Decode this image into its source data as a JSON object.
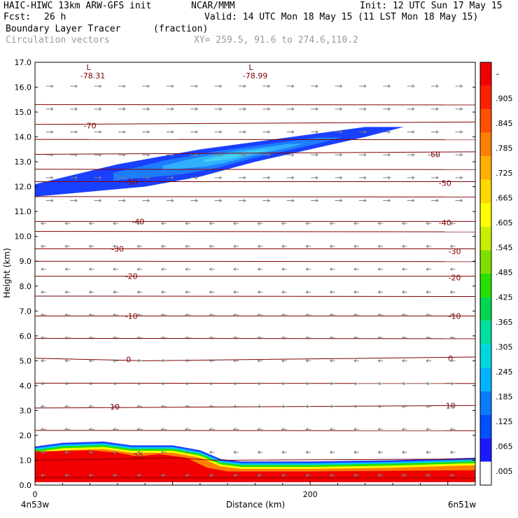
{
  "header": {
    "model": "HAIC-HIWC 13km ARW-GFS init",
    "org": "NCAR/MMM",
    "init": "Init: 12 UTC Sun 17 May 15",
    "fcst_label": "Fcst:",
    "fcst_value": "26 h",
    "valid": "Valid: 14 UTC Mon 18 May 15 (11 LST Mon 18 May 15)",
    "field_name": "Boundary Layer Tracer",
    "field_units": "(fraction)",
    "vectors_label": "Circulation vectors",
    "xy_label": "XY= 259.5, 91.6 to 274.6,110.2"
  },
  "colors": {
    "contour_line": "#800000",
    "vector": "#808080",
    "frame": "#000000"
  },
  "chart_data": {
    "type": "cross-section",
    "title": "Boundary Layer Tracer",
    "units": "(fraction)",
    "xlabel": "Distance (km)",
    "ylabel": "Height (km)",
    "xlim": [
      0,
      320
    ],
    "ylim": [
      0,
      17
    ],
    "x_ticks": [
      0,
      200
    ],
    "x_tick_labels": [
      "0",
      "200"
    ],
    "x_end_labels": [
      "4n53w",
      "6n51w"
    ],
    "y_ticks": [
      0,
      1,
      2,
      3,
      4,
      5,
      6,
      7,
      8,
      9,
      10,
      11,
      12,
      13,
      14,
      15,
      16,
      17
    ],
    "y_tick_labels": [
      "0.0",
      "1.0",
      "2.0",
      "3.0",
      "4.0",
      "5.0",
      "6.0",
      "7.0",
      "8.0",
      "9.0",
      "10.0",
      "11.0",
      "12.0",
      "13.0",
      "14.0",
      "15.0",
      "16.0",
      "17.0"
    ],
    "colorbar": {
      "labels": [
        ".005",
        ".065",
        ".125",
        ".185",
        ".245",
        ".305",
        ".365",
        ".425",
        ".485",
        ".545",
        ".605",
        ".665",
        ".725",
        ".785",
        ".845",
        ".905",
        "–"
      ],
      "colors": [
        "#ffffff",
        "#1a1aff",
        "#0050ff",
        "#0a7cff",
        "#00b4ff",
        "#00d8e0",
        "#00e0a0",
        "#00d650",
        "#28e000",
        "#7fe000",
        "#c8f000",
        "#ffff00",
        "#ffd800",
        "#ffb000",
        "#ff8000",
        "#ff5000",
        "#ff2000",
        "#f00000"
      ]
    },
    "temperature_contours": [
      {
        "label": "-70",
        "points": [
          [
            0,
            14.5
          ],
          [
            320,
            14.6
          ]
        ],
        "label_at": [
          40,
          14.45
        ]
      },
      {
        "label": "-60",
        "points": [
          [
            0,
            13.3
          ],
          [
            320,
            13.4
          ]
        ],
        "label_at": [
          290,
          13.3
        ]
      },
      {
        "label": "-50",
        "points": [
          [
            0,
            12.2
          ],
          [
            320,
            12.2
          ]
        ],
        "label_at": [
          70,
          12.2
        ]
      },
      {
        "label": "-50",
        "points": [
          [
            0,
            12.2
          ],
          [
            320,
            12.2
          ]
        ],
        "label_at": [
          298,
          12.15
        ]
      },
      {
        "label": "-40",
        "points": [
          [
            0,
            10.6
          ],
          [
            320,
            10.6
          ]
        ],
        "label_at": [
          75,
          10.6
        ]
      },
      {
        "label": "-40",
        "points": [
          [
            0,
            10.6
          ],
          [
            320,
            10.6
          ]
        ],
        "label_at": [
          298,
          10.55
        ]
      },
      {
        "label": "-30",
        "points": [
          [
            0,
            9.5
          ],
          [
            320,
            9.5
          ]
        ],
        "label_at": [
          60,
          9.5
        ]
      },
      {
        "label": "-30",
        "points": [
          [
            0,
            9.5
          ],
          [
            320,
            9.5
          ]
        ],
        "label_at": [
          305,
          9.4
        ]
      },
      {
        "label": "-20",
        "points": [
          [
            0,
            8.4
          ],
          [
            320,
            8.4
          ]
        ],
        "label_at": [
          70,
          8.4
        ]
      },
      {
        "label": "-20",
        "points": [
          [
            0,
            8.4
          ],
          [
            320,
            8.4
          ]
        ],
        "label_at": [
          305,
          8.35
        ]
      },
      {
        "label": "-10",
        "points": [
          [
            0,
            6.8
          ],
          [
            320,
            6.8
          ]
        ],
        "label_at": [
          70,
          6.8
        ]
      },
      {
        "label": "-10",
        "points": [
          [
            0,
            6.8
          ],
          [
            320,
            6.8
          ]
        ],
        "label_at": [
          305,
          6.8
        ]
      },
      {
        "label": "0",
        "points": [
          [
            0,
            5.1
          ],
          [
            80,
            5.0
          ],
          [
            320,
            5.15
          ]
        ],
        "label_at": [
          68,
          5.05
        ]
      },
      {
        "label": "0",
        "points": [
          [
            0,
            5.1
          ],
          [
            80,
            5.0
          ],
          [
            320,
            5.15
          ]
        ],
        "label_at": [
          302,
          5.1
        ]
      },
      {
        "label": "10",
        "points": [
          [
            0,
            3.1
          ],
          [
            320,
            3.2
          ]
        ],
        "label_at": [
          58,
          3.15
        ]
      },
      {
        "label": "10",
        "points": [
          [
            0,
            3.1
          ],
          [
            320,
            3.2
          ]
        ],
        "label_at": [
          302,
          3.2
        ]
      },
      {
        "label": "20",
        "points": [
          [
            0,
            1.0
          ],
          [
            60,
            1.05
          ],
          [
            100,
            1.1
          ],
          [
            130,
            1.0
          ],
          [
            320,
            1.05
          ]
        ],
        "label_at": [
          75,
          1.15
        ]
      }
    ],
    "unlabeled_contours": [
      15.3,
      13.9,
      12.7,
      11.6,
      10.2,
      9.0,
      7.6,
      5.9,
      4.1,
      2.2,
      0.3
    ],
    "lows": [
      {
        "label": "L",
        "value": "-78.31",
        "x": 42,
        "y": 16.8
      },
      {
        "label": "L",
        "value": "-78.99",
        "x": 160,
        "y": 16.8
      }
    ],
    "blue_plume": {
      "value_range": [
        0.005,
        0.185
      ],
      "top": [
        [
          0,
          12.1
        ],
        [
          30,
          12.5
        ],
        [
          60,
          12.9
        ],
        [
          90,
          13.2
        ],
        [
          120,
          13.5
        ],
        [
          160,
          13.8
        ],
        [
          200,
          14.1
        ],
        [
          240,
          14.4
        ],
        [
          268,
          14.4
        ]
      ],
      "bottom": [
        [
          268,
          14.4
        ],
        [
          240,
          14.0
        ],
        [
          200,
          13.5
        ],
        [
          160,
          13.0
        ],
        [
          120,
          12.4
        ],
        [
          80,
          12.0
        ],
        [
          40,
          11.8
        ],
        [
          0,
          11.6
        ]
      ]
    },
    "boundary_layer": {
      "value_range": [
        0.005,
        0.905
      ],
      "top": [
        [
          0,
          1.55
        ],
        [
          20,
          1.7
        ],
        [
          50,
          1.75
        ],
        [
          70,
          1.6
        ],
        [
          100,
          1.6
        ],
        [
          120,
          1.4
        ],
        [
          135,
          1.05
        ],
        [
          150,
          0.95
        ],
        [
          200,
          0.95
        ],
        [
          260,
          1.0
        ],
        [
          320,
          1.1
        ]
      ],
      "core_top": [
        [
          0,
          1.35
        ],
        [
          40,
          1.4
        ],
        [
          60,
          1.3
        ],
        [
          75,
          1.15
        ],
        [
          90,
          1.25
        ],
        [
          110,
          1.1
        ],
        [
          125,
          0.7
        ],
        [
          140,
          0.55
        ],
        [
          200,
          0.55
        ],
        [
          320,
          0.6
        ]
      ]
    }
  }
}
